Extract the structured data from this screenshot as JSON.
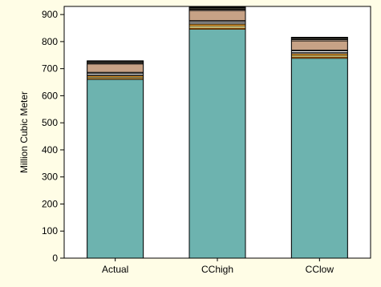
{
  "chart_data": {
    "type": "bar",
    "stacked": true,
    "ylabel": "Million Cubic Meter",
    "xlabel": "",
    "ylim": [
      0,
      930
    ],
    "yticks": [
      0,
      100,
      200,
      300,
      400,
      500,
      600,
      700,
      800,
      900
    ],
    "grid": false,
    "legend": "none",
    "categories": [
      "Actual",
      "CChigh",
      "CClow"
    ],
    "series": [
      {
        "color": "#6db3af",
        "values": [
          660,
          845,
          738
        ]
      },
      {
        "color": "#e07a10",
        "values": [
          4,
          5,
          5
        ]
      },
      {
        "color": "#f2e08a",
        "values": [
          5,
          8,
          6
        ]
      },
      {
        "color": "#f7a52a",
        "values": [
          5,
          6,
          6
        ]
      },
      {
        "color": "#8a8a8a",
        "values": [
          4,
          5,
          5
        ]
      },
      {
        "color": "#ffffff",
        "values": [
          5,
          5,
          5
        ]
      },
      {
        "color": "#404040",
        "values": [
          4,
          4,
          4
        ]
      },
      {
        "color": "#c7a286",
        "values": [
          30,
          35,
          33
        ]
      },
      {
        "color": "#e6c8b4",
        "values": [
          3,
          4,
          4
        ]
      },
      {
        "color": "#000000",
        "values": [
          3,
          3,
          3
        ]
      },
      {
        "color": "#fff4d0",
        "values": [
          3,
          3,
          3
        ]
      },
      {
        "color": "#000000",
        "values": [
          3,
          4,
          4
        ]
      }
    ]
  }
}
